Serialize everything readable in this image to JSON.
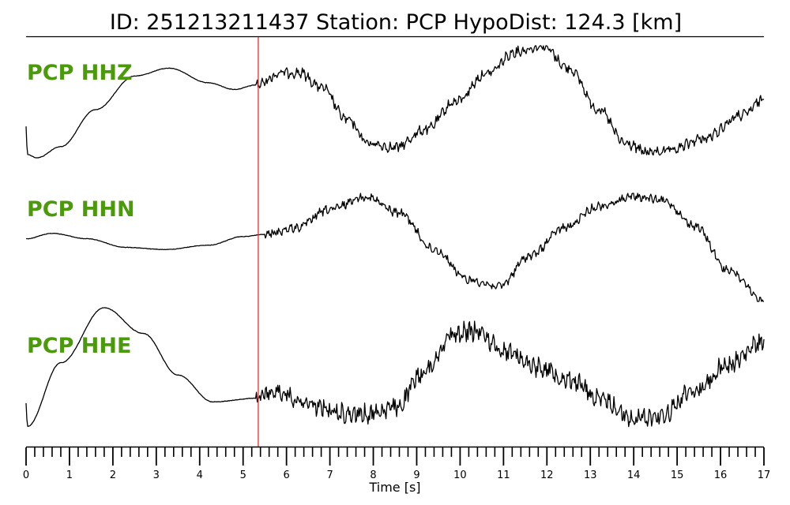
{
  "header": {
    "title": "ID: 251213211437   Station: PCP   HypoDist:   124.3 [km]"
  },
  "chart_data": {
    "type": "line",
    "xlabel": "Time [s]",
    "xlim": [
      0,
      17
    ],
    "x_ticks": [
      0,
      1,
      2,
      3,
      4,
      5,
      6,
      7,
      8,
      9,
      10,
      11,
      12,
      13,
      14,
      15,
      16,
      17
    ],
    "minor_tick_step": 0.2,
    "pick_time": 5.35,
    "pick_color": "#e8302a",
    "label_color": "#4a9a0a",
    "trace_color": "#000000",
    "series": [
      {
        "name": "PCP HHZ",
        "noise_start": 5.3,
        "noise_amp": 0.035,
        "points": [
          [
            0,
            0.72
          ],
          [
            0.03,
            0.97
          ],
          [
            0.25,
            1.0
          ],
          [
            0.8,
            0.9
          ],
          [
            1.6,
            0.57
          ],
          [
            2.5,
            0.27
          ],
          [
            3.3,
            0.2
          ],
          [
            4.2,
            0.33
          ],
          [
            4.8,
            0.39
          ],
          [
            5.3,
            0.35
          ],
          [
            5.9,
            0.24
          ],
          [
            6.3,
            0.24
          ],
          [
            6.8,
            0.37
          ],
          [
            7.4,
            0.66
          ],
          [
            7.9,
            0.87
          ],
          [
            8.5,
            0.91
          ],
          [
            9.2,
            0.75
          ],
          [
            9.9,
            0.5
          ],
          [
            10.6,
            0.25
          ],
          [
            11.3,
            0.05
          ],
          [
            11.9,
            0.0
          ],
          [
            12.5,
            0.2
          ],
          [
            13.2,
            0.57
          ],
          [
            13.8,
            0.87
          ],
          [
            14.3,
            0.95
          ],
          [
            14.8,
            0.94
          ],
          [
            15.6,
            0.83
          ],
          [
            16.5,
            0.62
          ],
          [
            17.0,
            0.48
          ]
        ]
      },
      {
        "name": "PCP HHN",
        "noise_start": 5.5,
        "noise_amp": 0.03,
        "points": [
          [
            0,
            0.42
          ],
          [
            0.6,
            0.37
          ],
          [
            1.4,
            0.42
          ],
          [
            2.3,
            0.5
          ],
          [
            3.2,
            0.52
          ],
          [
            4.2,
            0.48
          ],
          [
            5.0,
            0.4
          ],
          [
            5.5,
            0.38
          ],
          [
            6.2,
            0.32
          ],
          [
            7.0,
            0.15
          ],
          [
            7.8,
            0.03
          ],
          [
            8.6,
            0.18
          ],
          [
            9.4,
            0.52
          ],
          [
            10.2,
            0.8
          ],
          [
            10.9,
            0.86
          ],
          [
            11.6,
            0.58
          ],
          [
            12.4,
            0.32
          ],
          [
            13.2,
            0.12
          ],
          [
            14.0,
            0.03
          ],
          [
            14.7,
            0.07
          ],
          [
            15.4,
            0.3
          ],
          [
            16.2,
            0.72
          ],
          [
            17.0,
            1.0
          ]
        ]
      },
      {
        "name": "PCP HHE",
        "noise_start": 5.3,
        "noise_amp": 0.06,
        "points": [
          [
            0,
            0.78
          ],
          [
            0.03,
            0.97
          ],
          [
            0.8,
            0.45
          ],
          [
            1.8,
            0.0
          ],
          [
            2.7,
            0.21
          ],
          [
            3.5,
            0.55
          ],
          [
            4.3,
            0.77
          ],
          [
            5.3,
            0.74
          ],
          [
            5.8,
            0.68
          ],
          [
            6.5,
            0.79
          ],
          [
            7.2,
            0.86
          ],
          [
            7.8,
            0.87
          ],
          [
            8.5,
            0.82
          ],
          [
            9.2,
            0.52
          ],
          [
            9.8,
            0.22
          ],
          [
            10.4,
            0.19
          ],
          [
            11.0,
            0.35
          ],
          [
            11.8,
            0.48
          ],
          [
            12.5,
            0.58
          ],
          [
            13.3,
            0.76
          ],
          [
            14.0,
            0.91
          ],
          [
            14.6,
            0.88
          ],
          [
            15.4,
            0.68
          ],
          [
            16.2,
            0.46
          ],
          [
            17.0,
            0.28
          ]
        ]
      }
    ]
  }
}
